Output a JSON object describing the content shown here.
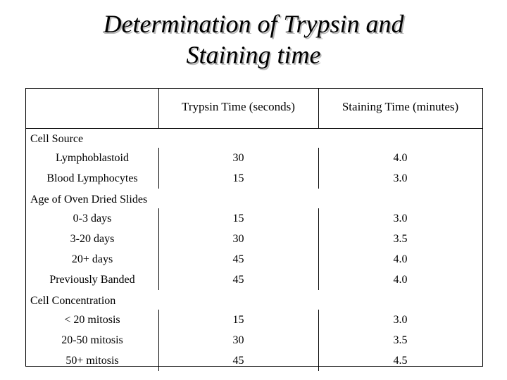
{
  "title": {
    "line1": "Determination of Trypsin and",
    "line2": "Staining time"
  },
  "table": {
    "columns": [
      "",
      "Trypsin Time (seconds)",
      "Staining Time (minutes)"
    ],
    "groups": [
      {
        "label": "Cell Source",
        "rows": [
          {
            "name": "Lymphoblastoid",
            "trypsin": "30",
            "staining": "4.0"
          },
          {
            "name": "Blood Lymphocytes",
            "trypsin": "15",
            "staining": "3.0"
          }
        ]
      },
      {
        "label": "Age of Oven Dried Slides",
        "rows": [
          {
            "name": "0-3 days",
            "trypsin": "15",
            "staining": "3.0"
          },
          {
            "name": "3-20 days",
            "trypsin": "30",
            "staining": "3.5"
          },
          {
            "name": "20+ days",
            "trypsin": "45",
            "staining": "4.0"
          },
          {
            "name": "Previously Banded",
            "trypsin": "45",
            "staining": "4.0"
          }
        ]
      },
      {
        "label": "Cell Concentration",
        "rows": [
          {
            "name": "< 20 mitosis",
            "trypsin": "15",
            "staining": "3.0"
          },
          {
            "name": "20-50 mitosis",
            "trypsin": "30",
            "staining": "3.5"
          },
          {
            "name": "50+ mitosis",
            "trypsin": "45",
            "staining": "4.5"
          }
        ]
      }
    ]
  }
}
